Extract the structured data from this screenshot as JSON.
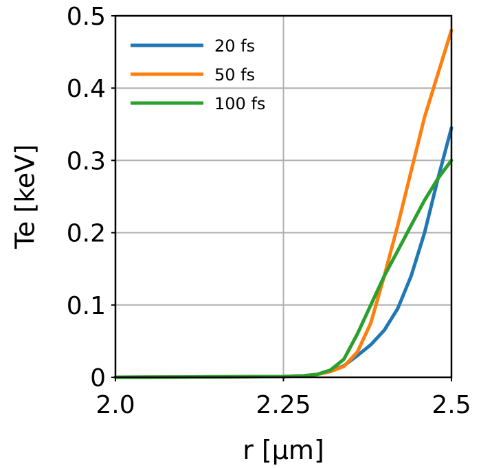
{
  "chart_data": {
    "type": "line",
    "xlabel": "r [μm]",
    "ylabel": "Te [keV]",
    "xlim": [
      2.0,
      2.5
    ],
    "ylim": [
      0,
      0.5
    ],
    "xticks": [
      2.0,
      2.25,
      2.5
    ],
    "xtick_labels": [
      "2.0",
      "2.25",
      "2.5"
    ],
    "yticks": [
      0,
      0.1,
      0.2,
      0.3,
      0.4,
      0.5
    ],
    "ytick_labels": [
      "0",
      "0.1",
      "0.2",
      "0.3",
      "0.4",
      "0.5"
    ],
    "grid": true,
    "legend_position": "top-left",
    "series": [
      {
        "name": "20 fs",
        "color": "#1f77b4",
        "x": [
          2.0,
          2.25,
          2.28,
          2.3,
          2.32,
          2.34,
          2.36,
          2.38,
          2.4,
          2.42,
          2.44,
          2.46,
          2.48,
          2.5
        ],
        "y": [
          0,
          0.001,
          0.002,
          0.004,
          0.008,
          0.016,
          0.03,
          0.045,
          0.065,
          0.095,
          0.14,
          0.2,
          0.275,
          0.345
        ]
      },
      {
        "name": "50 fs",
        "color": "#ff7f0e",
        "x": [
          2.0,
          2.25,
          2.28,
          2.3,
          2.32,
          2.34,
          2.36,
          2.38,
          2.4,
          2.42,
          2.44,
          2.46,
          2.48,
          2.5
        ],
        "y": [
          0,
          0.001,
          0.002,
          0.004,
          0.008,
          0.015,
          0.035,
          0.075,
          0.14,
          0.21,
          0.285,
          0.36,
          0.42,
          0.48
        ]
      },
      {
        "name": "100 fs",
        "color": "#2ca02c",
        "x": [
          2.0,
          2.25,
          2.28,
          2.3,
          2.32,
          2.34,
          2.36,
          2.38,
          2.4,
          2.42,
          2.44,
          2.46,
          2.48,
          2.5
        ],
        "y": [
          0,
          0.001,
          0.002,
          0.004,
          0.01,
          0.025,
          0.06,
          0.1,
          0.14,
          0.175,
          0.21,
          0.245,
          0.275,
          0.3
        ]
      }
    ]
  }
}
